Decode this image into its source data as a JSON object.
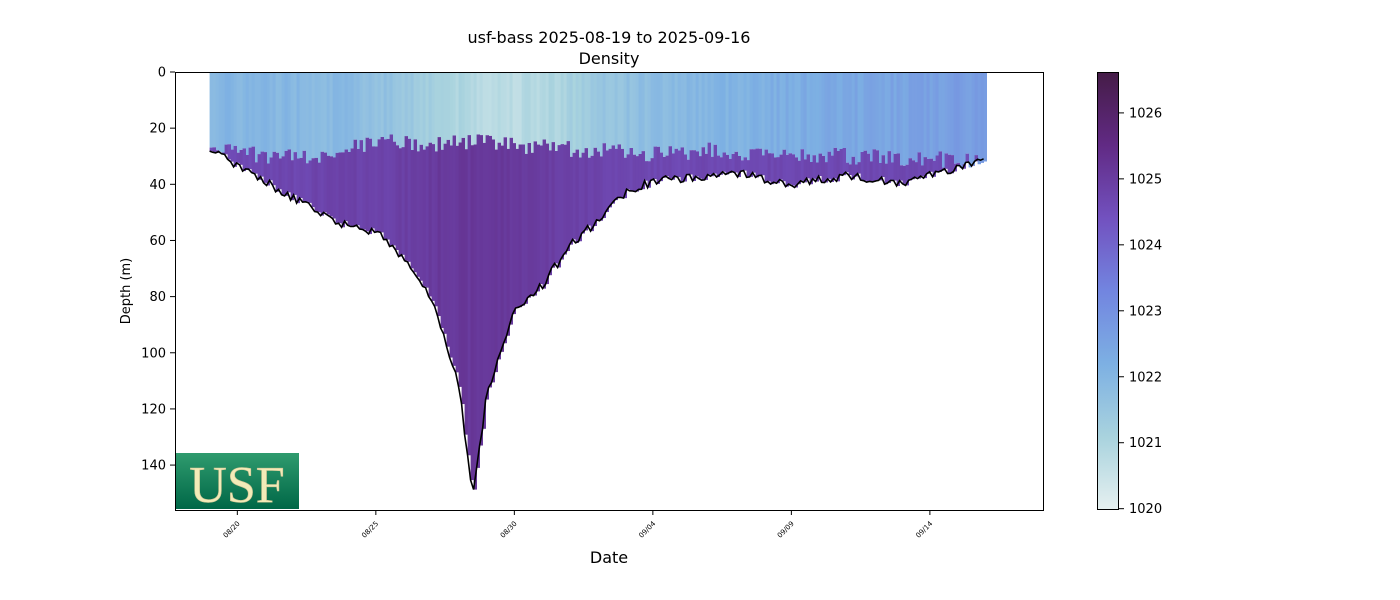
{
  "chart_data": {
    "type": "heatmap",
    "title": "usf-bass 2025-08-19 to 2025-09-16",
    "subtitle": "Density",
    "xlabel": "Date",
    "ylabel": "Depth (m)",
    "x_range": [
      "2025-08-17 18:00",
      "2025-09-18 02:00"
    ],
    "y_range": [
      156,
      0
    ],
    "y_inverted": true,
    "x_ticks": [
      "08/20",
      "08/25",
      "08/30",
      "09/04",
      "09/09",
      "09/14"
    ],
    "x_tick_dates": [
      "2025-08-20",
      "2025-08-25",
      "2025-08-30",
      "2025-09-04",
      "2025-09-09",
      "2025-09-14"
    ],
    "y_ticks": [
      0,
      20,
      40,
      60,
      80,
      100,
      120,
      140
    ],
    "colorbar": {
      "range": [
        1019.98,
        1026.62
      ],
      "ticks": [
        1020,
        1021,
        1022,
        1023,
        1024,
        1025,
        1026
      ],
      "colormap": "dense",
      "colors": [
        "#e6f0f0",
        "#a9d3de",
        "#7db0e3",
        "#7285e0",
        "#7251bf",
        "#612a84",
        "#451c47"
      ]
    },
    "data_start": "2025-08-19",
    "data_end": "2025-09-16",
    "mixed_layer_bottom_m": [
      {
        "date": "2025-08-19",
        "depth": 27
      },
      {
        "date": "2025-08-21",
        "depth": 30
      },
      {
        "date": "2025-08-23",
        "depth": 31
      },
      {
        "date": "2025-08-25",
        "depth": 24
      },
      {
        "date": "2025-08-27",
        "depth": 26
      },
      {
        "date": "2025-08-29",
        "depth": 25
      },
      {
        "date": "2025-08-31",
        "depth": 27
      },
      {
        "date": "2025-09-02",
        "depth": 28
      },
      {
        "date": "2025-09-04",
        "depth": 29
      },
      {
        "date": "2025-09-06",
        "depth": 28
      },
      {
        "date": "2025-09-08",
        "depth": 29
      },
      {
        "date": "2025-09-10",
        "depth": 30
      },
      {
        "date": "2025-09-12",
        "depth": 30
      },
      {
        "date": "2025-09-14",
        "depth": 31
      },
      {
        "date": "2025-09-16",
        "depth": 32
      }
    ],
    "max_depth_m": [
      {
        "date": "2025-08-19",
        "depth": 28
      },
      {
        "date": "2025-08-20",
        "depth": 33
      },
      {
        "date": "2025-08-22",
        "depth": 45
      },
      {
        "date": "2025-08-24",
        "depth": 55
      },
      {
        "date": "2025-08-25",
        "depth": 57
      },
      {
        "date": "2025-08-26",
        "depth": 66
      },
      {
        "date": "2025-08-27",
        "depth": 80
      },
      {
        "date": "2025-08-28",
        "depth": 112
      },
      {
        "date": "2025-08-28 12:00",
        "depth": 152
      },
      {
        "date": "2025-08-29",
        "depth": 115
      },
      {
        "date": "2025-08-30",
        "depth": 85
      },
      {
        "date": "2025-08-31",
        "depth": 76
      },
      {
        "date": "2025-09-01",
        "depth": 62
      },
      {
        "date": "2025-09-02",
        "depth": 53
      },
      {
        "date": "2025-09-03",
        "depth": 43
      },
      {
        "date": "2025-09-04",
        "depth": 39
      },
      {
        "date": "2025-09-06",
        "depth": 37
      },
      {
        "date": "2025-09-07",
        "depth": 36
      },
      {
        "date": "2025-09-09",
        "depth": 40
      },
      {
        "date": "2025-09-11",
        "depth": 37
      },
      {
        "date": "2025-09-13",
        "depth": 40
      },
      {
        "date": "2025-09-15",
        "depth": 34
      },
      {
        "date": "2025-09-16",
        "depth": 32
      }
    ]
  },
  "logo": {
    "text": "USF",
    "colors": [
      "#006747",
      "#cfc493"
    ]
  }
}
